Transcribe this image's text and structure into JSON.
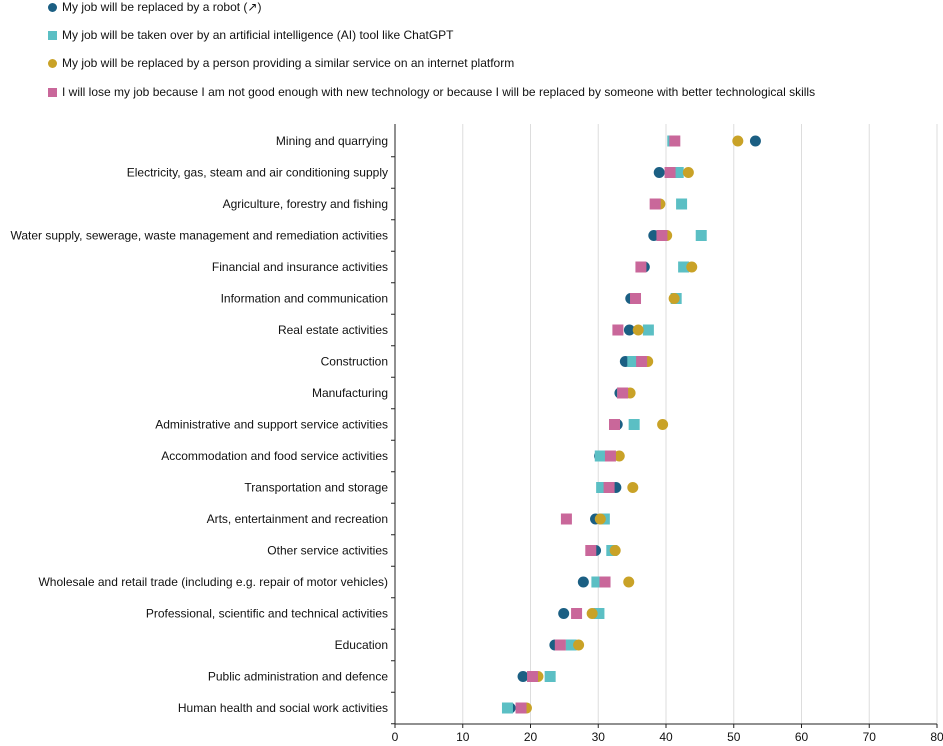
{
  "chart_data": {
    "type": "scatter",
    "orientation": "horizontal-dot-plot",
    "title": "",
    "xlabel": "",
    "ylabel": "",
    "xlim": [
      0,
      80
    ],
    "x_ticks": [
      "0",
      "10",
      "20",
      "30",
      "40",
      "50",
      "60",
      "70",
      "80"
    ],
    "grid": "vertical",
    "legend_position": "top-left",
    "categories": [
      "Mining and quarrying",
      "Electricity, gas, steam and air conditioning supply",
      "Agriculture, forestry and fishing",
      "Water supply, sewerage, waste management and remediation activities",
      "Financial and insurance activities",
      "Information and communication",
      "Real estate activities",
      "Construction",
      "Manufacturing",
      "Administrative and support service activities",
      "Accommodation and food service activities",
      "Transportation and storage",
      "Arts, entertainment and recreation",
      "Other service activities",
      "Wholesale and retail trade (including e.g. repair of motor vehicles)",
      "Professional, scientific and technical activities",
      "Education",
      "Public administration and defence",
      "Human health and social work activities"
    ],
    "series": [
      {
        "name": "My job will be replaced by a robot (↗)",
        "marker": "circle",
        "color": "#1b5f83",
        "values": [
          53.2,
          39.0,
          38.8,
          38.2,
          36.8,
          34.8,
          34.6,
          34.0,
          33.2,
          32.8,
          30.2,
          32.6,
          29.6,
          29.6,
          27.8,
          24.9,
          23.6,
          18.9,
          17.0
        ]
      },
      {
        "name": "My job will be taken over by an artificial intelligence (AI) tool like ChatGPT",
        "marker": "square",
        "color": "#5bbfc4",
        "values": [
          41.0,
          41.8,
          42.3,
          45.2,
          42.6,
          41.5,
          37.4,
          35.1,
          33.6,
          35.3,
          30.3,
          30.5,
          30.9,
          32.0,
          29.8,
          30.1,
          26.0,
          22.9,
          16.6
        ]
      },
      {
        "name": "My job will be replaced by a person providing a similar service on an internet platform",
        "marker": "circle",
        "color": "#c9a227",
        "values": [
          50.6,
          43.3,
          39.1,
          40.1,
          43.8,
          41.2,
          35.9,
          37.3,
          34.7,
          39.5,
          33.1,
          35.1,
          30.3,
          32.5,
          34.5,
          29.1,
          27.1,
          21.1,
          19.4
        ]
      },
      {
        "name": "I will lose my job because I am not good enough with new technology or because I will be replaced by someone with better technological skills",
        "marker": "square",
        "color": "#c9679a",
        "values": [
          41.3,
          40.6,
          38.4,
          39.4,
          36.3,
          35.5,
          32.9,
          36.4,
          33.6,
          32.4,
          31.8,
          31.6,
          25.3,
          28.9,
          31.0,
          26.8,
          24.4,
          20.3,
          18.6
        ]
      }
    ]
  }
}
